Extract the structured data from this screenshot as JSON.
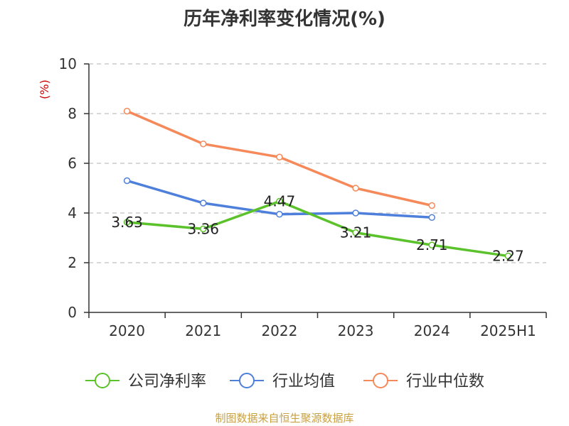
{
  "chart_data": {
    "type": "line",
    "title": "历年净利率变化情况(%)",
    "ylabel": "(%)",
    "xlabel": "",
    "categories": [
      "2020",
      "2021",
      "2022",
      "2023",
      "2024",
      "2025H1"
    ],
    "ylim": [
      0,
      10
    ],
    "yticks": [
      0,
      2,
      4,
      6,
      8,
      10
    ],
    "grid": true,
    "legend_position": "bottom",
    "series": [
      {
        "name": "公司净利率",
        "color": "#5cc22c",
        "values": [
          3.63,
          3.36,
          4.47,
          3.21,
          2.71,
          2.27
        ],
        "show_labels": true
      },
      {
        "name": "行业均值",
        "color": "#4e7fda",
        "values": [
          5.3,
          4.4,
          3.95,
          4.0,
          3.82,
          null
        ],
        "show_labels": false
      },
      {
        "name": "行业中位数",
        "color": "#f5895a",
        "values": [
          8.1,
          6.78,
          6.25,
          5.0,
          4.3,
          null
        ],
        "show_labels": false
      }
    ]
  },
  "colors": {
    "ylabel": "#cc0000",
    "source": "#c8a040",
    "axis": "#333333",
    "grid": "#c0c0c0"
  },
  "source_text": "制图数据来自恒生聚源数据库"
}
